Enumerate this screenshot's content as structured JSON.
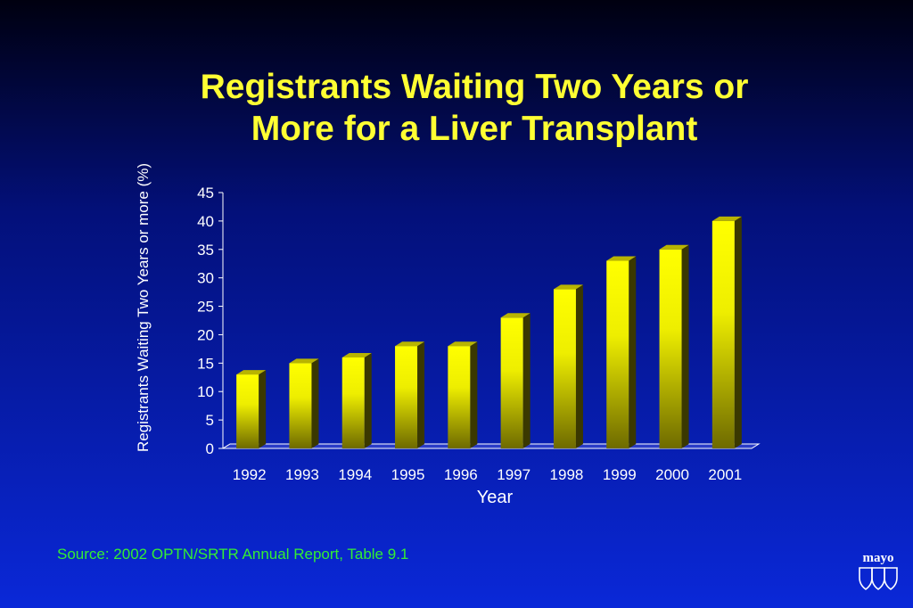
{
  "chart_data": {
    "type": "bar",
    "title": [
      "Registrants Waiting Two Years or",
      "More for a Liver Transplant"
    ],
    "xlabel": "Year",
    "ylabel": "Registrants Waiting Two Years or more (%)",
    "categories": [
      "1992",
      "1993",
      "1994",
      "1995",
      "1996",
      "1997",
      "1998",
      "1999",
      "2000",
      "2001"
    ],
    "values": [
      13,
      15,
      16,
      18,
      18,
      23,
      28,
      33,
      35,
      40
    ],
    "ylim": [
      0,
      45
    ],
    "yticks": [
      0,
      5,
      10,
      15,
      20,
      25,
      30,
      35,
      40,
      45
    ],
    "grid": false,
    "legend": "none",
    "colors": {
      "bar_top": "#ffff00",
      "bar_bottom": "#6e6a00",
      "bar_side": "#3a3800",
      "bar_cap": "#b8b400",
      "axis": "#ffffff",
      "text": "#ffffff"
    }
  },
  "source": "Source:  2002 OPTN/SRTR Annual Report, Table 9.1",
  "logo": {
    "wordmark": "mayo",
    "icon": "mayo-shields-icon"
  }
}
